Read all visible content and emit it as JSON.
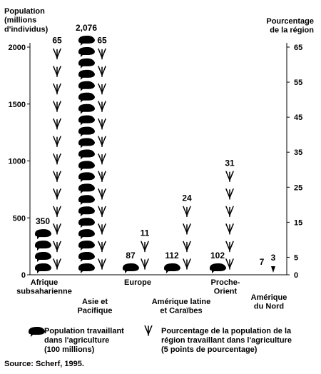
{
  "chart_data": {
    "type": "bar",
    "title": "",
    "y_left_label": "Population\n(millions\nd'individus)",
    "y_right_label": "Pourcentage\nde la région",
    "y_left_ticks": [
      0,
      500,
      1000,
      1500,
      2000
    ],
    "y_right_ticks": [
      0,
      5,
      15,
      25,
      35,
      45,
      55,
      65
    ],
    "y_left_lim": [
      0,
      2000
    ],
    "y_right_lim": [
      0,
      65
    ],
    "categories": [
      {
        "label": "Afrique\nsubsaharienne",
        "population": 350,
        "population_label": "350",
        "percent": 65,
        "percent_label": "65"
      },
      {
        "label": "Asie et\nPacifique",
        "population": 2076,
        "population_label": "2,076",
        "percent": 65,
        "percent_label": "65"
      },
      {
        "label": "Europe",
        "population": 87,
        "population_label": "87",
        "percent": 11,
        "percent_label": "11"
      },
      {
        "label": "Amérique latine\net Caraïbes",
        "population": 112,
        "population_label": "112",
        "percent": 24,
        "percent_label": "24"
      },
      {
        "label": "Proche-\nOrient",
        "population": 102,
        "population_label": "102",
        "percent": 31,
        "percent_label": "31"
      },
      {
        "label": "Amérique\ndu Nord",
        "population": 7,
        "population_label": "7",
        "percent": 3,
        "percent_label": "3"
      }
    ],
    "series": [
      {
        "name": "Population travaillant dans l'agriculture (100 millions)",
        "unit": 100,
        "icon": "worker-icon"
      },
      {
        "name": "Pourcentage de la population de la région travaillant dans l'agriculture (5 points de pourcentage)",
        "unit": 5,
        "icon": "wheat-icon"
      }
    ]
  },
  "legend": {
    "worker": "Population travaillant\ndans l'agriculture\n(100 millions)",
    "wheat": "Pourcentage de la population de la\nrégion travaillant dans l'agriculture\n(5 points de pourcentage)"
  },
  "source": "Source: Scherf, 1995."
}
